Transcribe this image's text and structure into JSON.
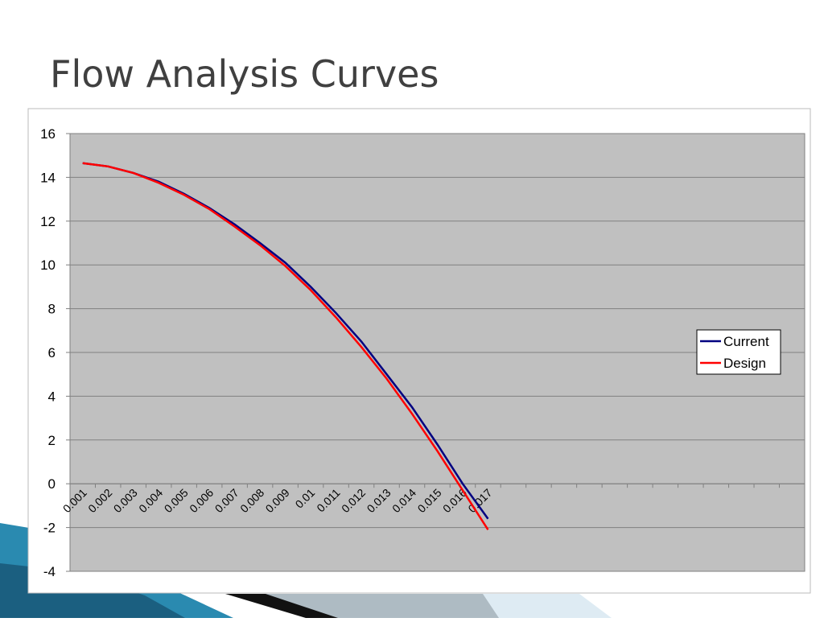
{
  "slide": {
    "title": "Flow Analysis Curves"
  },
  "chart_data": {
    "type": "line",
    "categories": [
      "0.001",
      "0.002",
      "0.003",
      "0.004",
      "0.005",
      "0.006",
      "0.007",
      "0.008",
      "0.009",
      "0.01",
      "0.011",
      "0.012",
      "0.013",
      "0.014",
      "0.015",
      "0.016",
      "0.017",
      null,
      null,
      null,
      null,
      null,
      null,
      null,
      null,
      null,
      null,
      null,
      null
    ],
    "series": [
      {
        "name": "Current",
        "color": "#000080",
        "values": [
          14.65,
          14.5,
          14.2,
          13.8,
          13.25,
          12.6,
          11.85,
          11.0,
          10.1,
          9.0,
          7.8,
          6.5,
          5.0,
          3.5,
          1.8,
          0.0,
          -1.6,
          null,
          null,
          null,
          null,
          null,
          null,
          null,
          null,
          null,
          null,
          null,
          null
        ]
      },
      {
        "name": "Design",
        "color": "#ff0000",
        "values": [
          14.65,
          14.5,
          14.2,
          13.75,
          13.2,
          12.55,
          11.75,
          10.9,
          9.95,
          8.85,
          7.6,
          6.25,
          4.8,
          3.2,
          1.5,
          -0.3,
          -2.1,
          null,
          null,
          null,
          null,
          null,
          null,
          null,
          null,
          null,
          null,
          null,
          null
        ]
      }
    ],
    "ylim": [
      -4,
      16
    ],
    "yticks": [
      -4,
      -2,
      0,
      2,
      4,
      6,
      8,
      10,
      12,
      14,
      16
    ],
    "grid": true,
    "legend": "right"
  }
}
